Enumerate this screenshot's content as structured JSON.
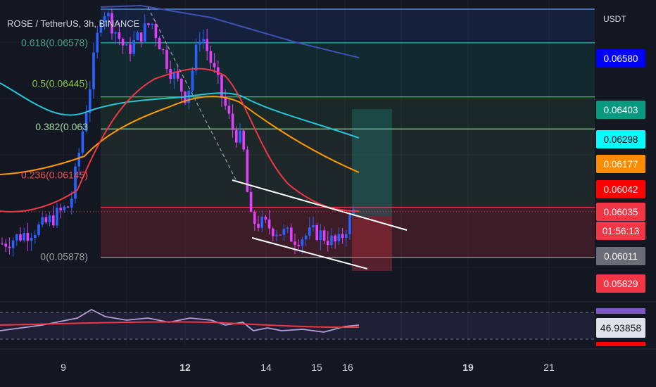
{
  "chart_data": {
    "type": "candlestick",
    "title": "ROSE / TetherUS, 3h, BINANCE",
    "currency": "USDT",
    "x_ticks": [
      "9",
      "12",
      "14",
      "15",
      "16",
      "19",
      "21"
    ],
    "price_range": [
      0.0573,
      0.0672
    ],
    "fib_levels": [
      {
        "label": "0.618(0.06578)",
        "value": 0.06578,
        "color": "#4f9d8a"
      },
      {
        "label": "0.5(0.06445)",
        "value": 0.06445,
        "color": "#8bc34a"
      },
      {
        "label": "0.382(0.063",
        "value": 0.06303,
        "color": "#a5d6a7"
      },
      {
        "label": "0.236(0.06145)",
        "value": 0.06145,
        "color": "#ef5350"
      },
      {
        "label": "0(0.05878)",
        "value": 0.05878,
        "color": "#9e9e9e"
      }
    ],
    "price_labels": [
      {
        "text": "0.06580",
        "bg": "#0000ff",
        "fg": "#ffffff"
      },
      {
        "text": "0.06403",
        "bg": "#089981",
        "fg": "#ffffff"
      },
      {
        "text": "0.06298",
        "bg": "#00ffff",
        "fg": "#000000"
      },
      {
        "text": "0.06177",
        "bg": "#ff8c00",
        "fg": "#ffffff"
      },
      {
        "text": "0.06042",
        "bg": "#ff0000",
        "fg": "#ffffff"
      },
      {
        "text": "0.06035",
        "bg": "#f23645",
        "fg": "#ffffff"
      },
      {
        "text": "01:56:13",
        "bg": "#f23645",
        "fg": "#ffffff"
      },
      {
        "text": "0.06011",
        "bg": "#6a6d78",
        "fg": "#ffffff"
      },
      {
        "text": "0.05829",
        "bg": "#f23645",
        "fg": "#ffffff"
      }
    ],
    "rsi_value_label": "46.93858",
    "colors": {
      "up": "#2962ff",
      "down": "#e040fb",
      "ma_fast": "#f23645",
      "ma_mid": "#ff9800",
      "ma_slow": "#26c6da",
      "ma_long": "#3f51b5"
    }
  }
}
